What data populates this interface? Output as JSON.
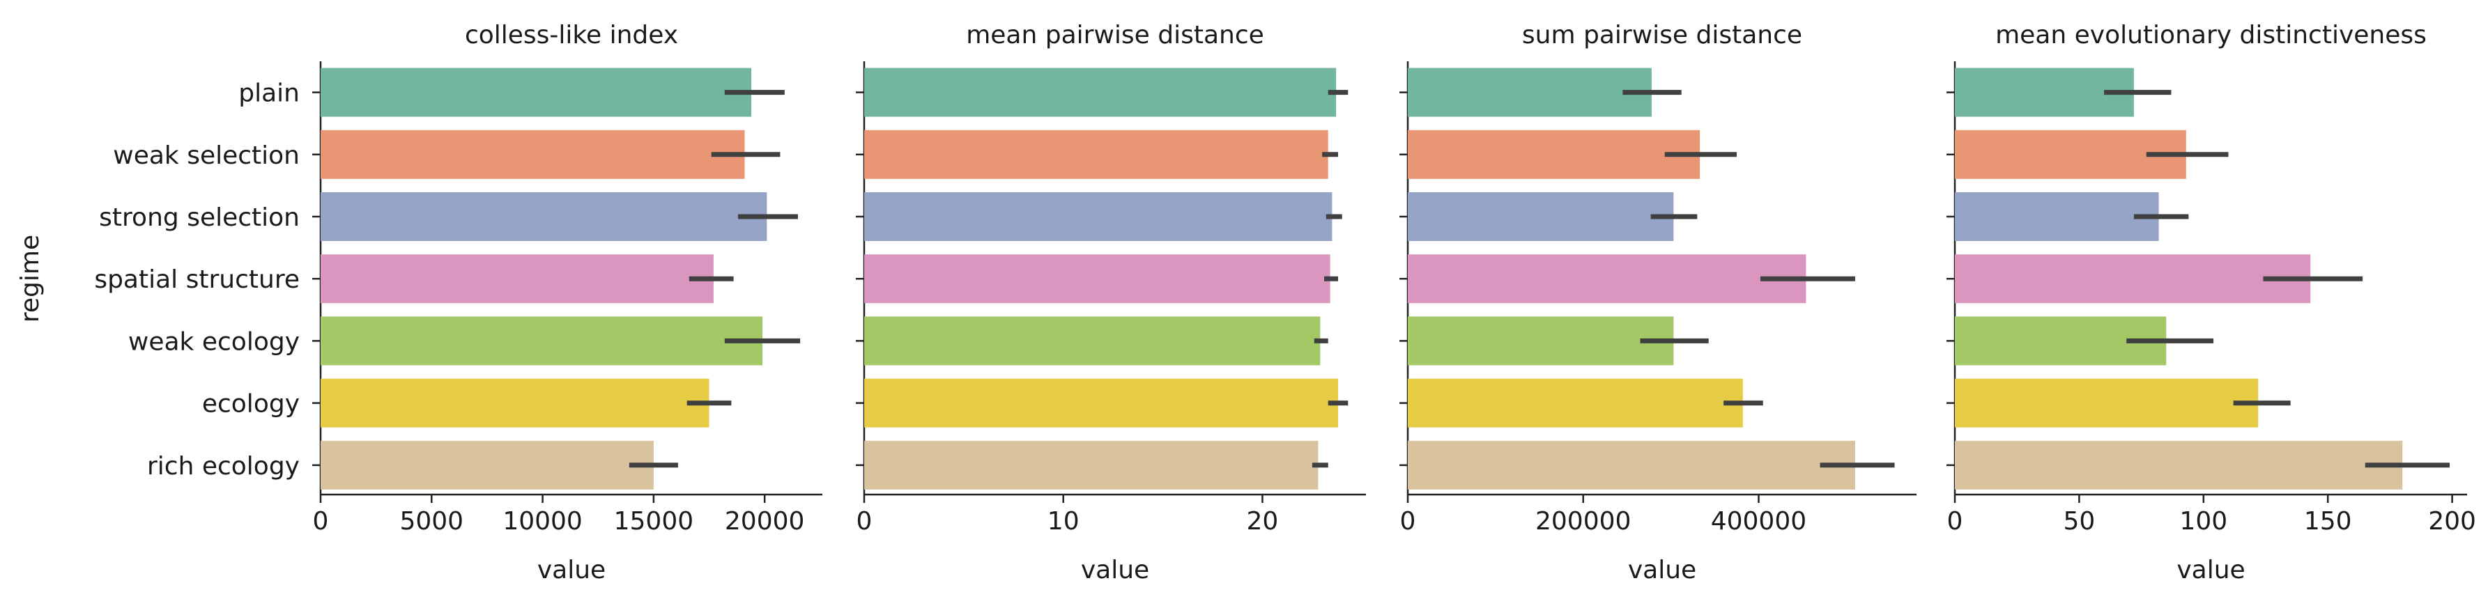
{
  "ylabel": "regime",
  "categories": [
    "plain",
    "weak selection",
    "strong selection",
    "spatial structure",
    "weak ecology",
    "ecology",
    "rich ecology"
  ],
  "colors": [
    "#72b6a1",
    "#e99675",
    "#95a3c6",
    "#db96c0",
    "#a4c865",
    "#e6cc45",
    "#d9c39e"
  ],
  "error_color": "#404040",
  "chart_data": [
    {
      "type": "bar",
      "title": "colless-like index",
      "xlabel": "value",
      "categories": [
        "plain",
        "weak selection",
        "strong selection",
        "spatial structure",
        "weak ecology",
        "ecology",
        "rich ecology"
      ],
      "values": [
        19400,
        19100,
        20100,
        17700,
        19900,
        17500,
        15000
      ],
      "ci": [
        [
          18200,
          20900
        ],
        [
          17600,
          20700
        ],
        [
          18800,
          21500
        ],
        [
          16600,
          18600
        ],
        [
          18200,
          21600
        ],
        [
          16500,
          18500
        ],
        [
          13900,
          16100
        ]
      ],
      "xlim": [
        0,
        22600
      ],
      "xticks": [
        0,
        5000,
        10000,
        15000,
        20000
      ],
      "xtick_labels": [
        "0",
        "5000",
        "10000",
        "15000",
        "20000"
      ]
    },
    {
      "type": "bar",
      "title": "mean pairwise distance",
      "xlabel": "value",
      "categories": [
        "plain",
        "weak selection",
        "strong selection",
        "spatial structure",
        "weak ecology",
        "ecology",
        "rich ecology"
      ],
      "values": [
        23.7,
        23.3,
        23.5,
        23.4,
        22.9,
        23.8,
        22.8
      ],
      "ci": [
        [
          23.3,
          24.3
        ],
        [
          23.0,
          23.8
        ],
        [
          23.2,
          24.0
        ],
        [
          23.1,
          23.8
        ],
        [
          22.6,
          23.3
        ],
        [
          23.3,
          24.3
        ],
        [
          22.5,
          23.3
        ]
      ],
      "xlim": [
        0,
        25.2
      ],
      "xticks": [
        0,
        10,
        20
      ],
      "xtick_labels": [
        "0",
        "10",
        "20"
      ]
    },
    {
      "type": "bar",
      "title": "sum pairwise distance",
      "xlabel": "value",
      "categories": [
        "plain",
        "weak selection",
        "strong selection",
        "spatial structure",
        "weak ecology",
        "ecology",
        "rich ecology"
      ],
      "values": [
        278000,
        333000,
        303000,
        454000,
        303000,
        382000,
        510000
      ],
      "ci": [
        [
          245000,
          312000
        ],
        [
          293000,
          375000
        ],
        [
          277000,
          330000
        ],
        [
          402000,
          510000
        ],
        [
          265000,
          343000
        ],
        [
          360000,
          405000
        ],
        [
          470000,
          555000
        ]
      ],
      "xlim": [
        0,
        580000
      ],
      "xticks": [
        0,
        200000,
        400000
      ],
      "xtick_labels": [
        "0",
        "200000",
        "400000"
      ]
    },
    {
      "type": "bar",
      "title": "mean evolutionary distinctiveness",
      "xlabel": "value",
      "categories": [
        "plain",
        "weak selection",
        "strong selection",
        "spatial structure",
        "weak ecology",
        "ecology",
        "rich ecology"
      ],
      "values": [
        72,
        93,
        82,
        143,
        85,
        122,
        180
      ],
      "ci": [
        [
          60,
          87
        ],
        [
          77,
          110
        ],
        [
          72,
          94
        ],
        [
          124,
          164
        ],
        [
          69,
          104
        ],
        [
          112,
          135
        ],
        [
          165,
          199
        ]
      ],
      "xlim": [
        0,
        206
      ],
      "xticks": [
        0,
        50,
        100,
        150,
        200
      ],
      "xtick_labels": [
        "0",
        "50",
        "100",
        "150",
        "200"
      ]
    }
  ]
}
